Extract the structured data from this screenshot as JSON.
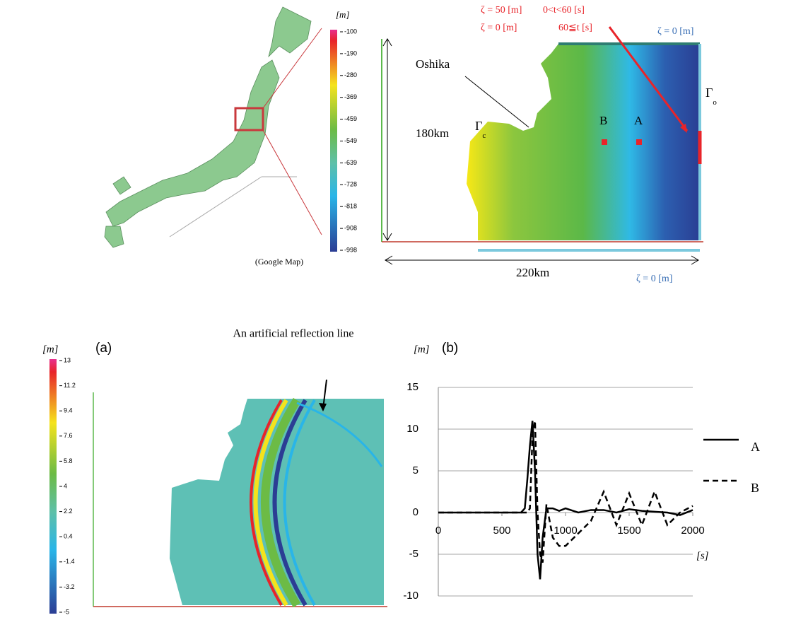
{
  "top_map": {
    "source": "(Google Map)"
  },
  "colorbar_depth": {
    "unit": "[m]",
    "ticks": [
      "-100",
      "-190",
      "-280",
      "-369",
      "-459",
      "-549",
      "-639",
      "-728",
      "-818",
      "-908",
      "-998"
    ]
  },
  "domain": {
    "inflow_1": "ζ = 50 [m]",
    "inflow_1_time": "0<t<60 [s]",
    "inflow_2": "ζ = 0 [m]",
    "inflow_2_time": "60≦t [s]",
    "boundary_top": "ζ = 0 [m]",
    "boundary_bottom": "ζ = 0 [m]",
    "place": "Oshika",
    "height": "180km",
    "width": "220km",
    "gamma_c": {
      "symbol": "Γ",
      "sub": "c"
    },
    "gamma_o": {
      "symbol": "Γ",
      "sub": "o"
    },
    "point_b": "B",
    "point_a": "A"
  },
  "panel_a": {
    "unit": "[m]",
    "label": "(a)",
    "annotation": "An artificial reflection line"
  },
  "colorbar_wave": {
    "ticks": [
      "13",
      "11.2",
      "9.4",
      "7.6",
      "5.8",
      "4",
      "2.2",
      "0.4",
      "-1.4",
      "-3.2",
      "-5"
    ]
  },
  "chart_data": {
    "type": "line",
    "panel": "(b)",
    "y_label": "[m]",
    "x_label": "[s]",
    "x": [
      0,
      600,
      650,
      680,
      700,
      720,
      740,
      760,
      780,
      800,
      820,
      850,
      900,
      950,
      1000,
      1100,
      1200,
      1300,
      1400,
      1500,
      1600,
      1700,
      1800,
      1900,
      2000
    ],
    "series": [
      {
        "name": "A",
        "color": "#000000",
        "dash": false,
        "values": [
          0,
          0,
          0,
          0.5,
          4,
          8,
          11,
          5,
          -5,
          -8,
          -3,
          0.5,
          0.5,
          0.2,
          0.5,
          0,
          0.3,
          0.3,
          0,
          0.4,
          0.2,
          0.1,
          0,
          -0.3,
          0.3
        ]
      },
      {
        "name": "B",
        "color": "#000000",
        "dash": true,
        "values": [
          0,
          0,
          0,
          0,
          0,
          0.5,
          9,
          11,
          0,
          -5,
          -6,
          1,
          -3,
          -4,
          -4,
          -2.5,
          -1,
          2.5,
          -1.5,
          2.3,
          -1.5,
          2.5,
          -1.5,
          0,
          0.8
        ]
      }
    ],
    "xlim": [
      0,
      2000
    ],
    "ylim": [
      -10,
      15
    ],
    "xticks": [
      0,
      500,
      1000,
      1500,
      2000
    ],
    "yticks": [
      -10,
      -5,
      0,
      5,
      10,
      15
    ],
    "grid": true
  }
}
